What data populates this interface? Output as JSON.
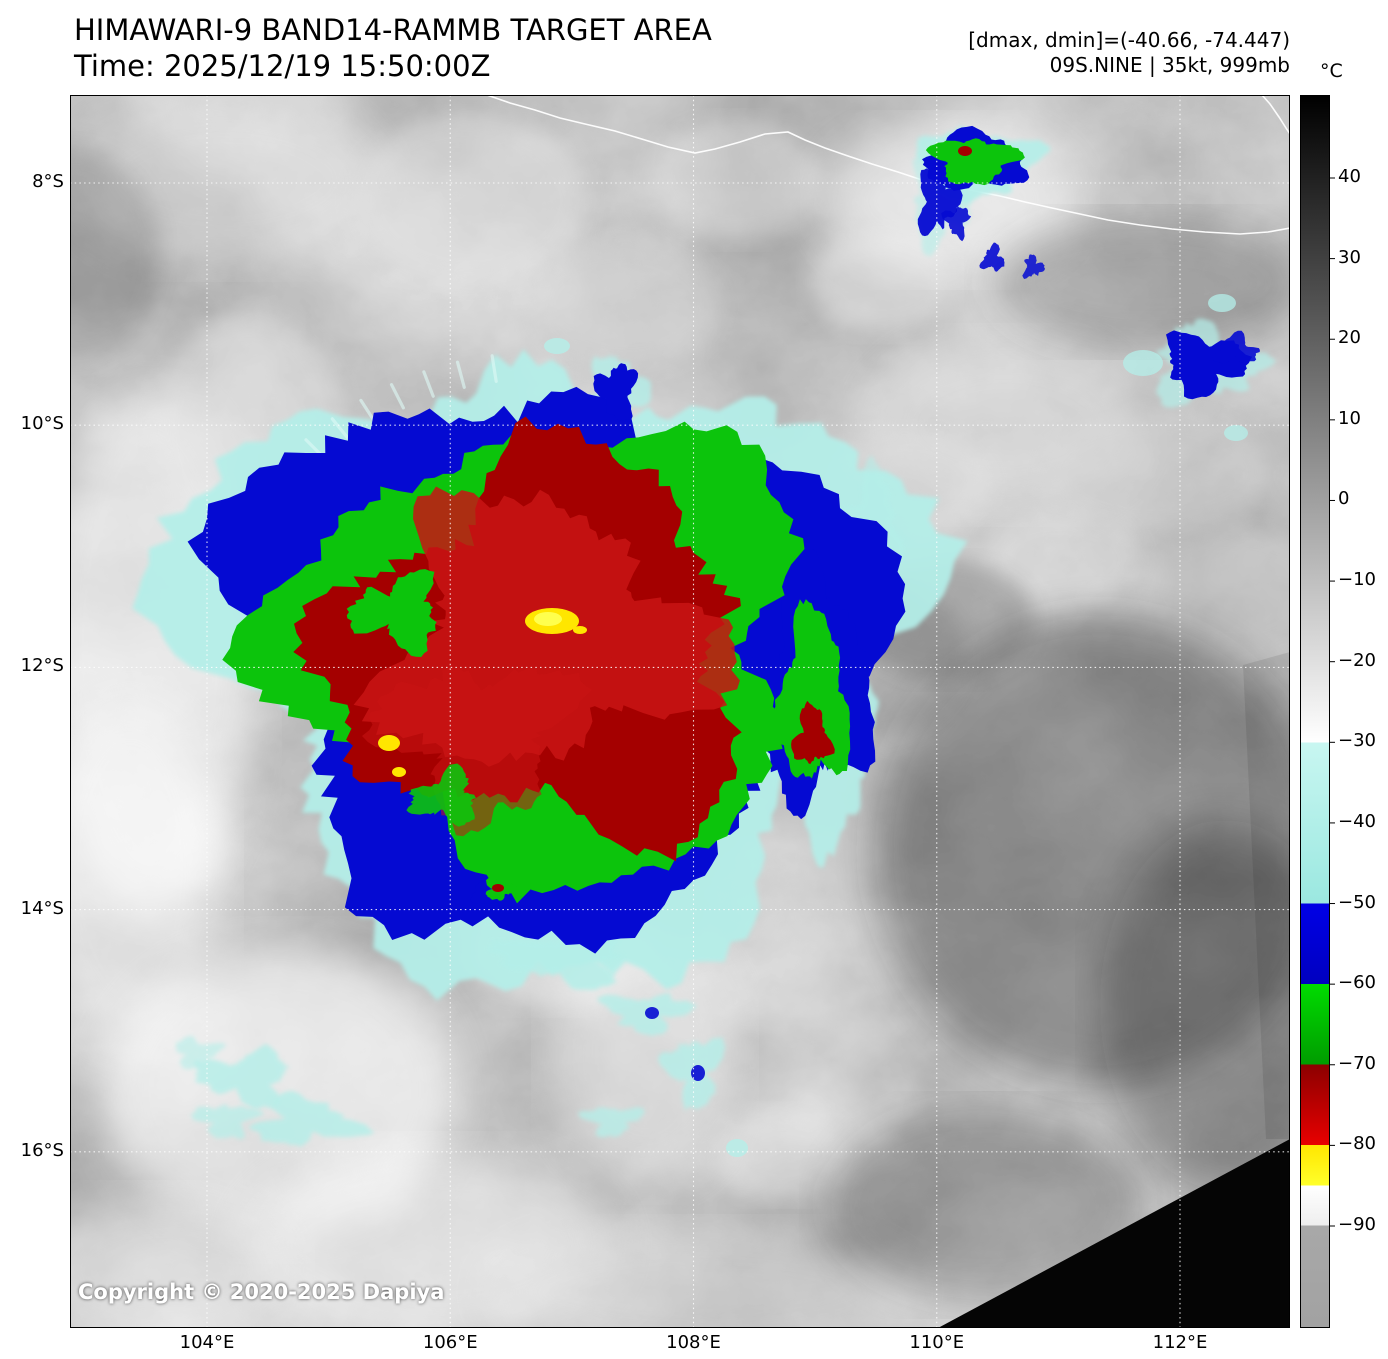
{
  "header": {
    "title": "HIMAWARI-9 BAND14-RAMMB TARGET AREA",
    "time_line": "Time: 2025/12/19 15:50:00Z",
    "dmax_dmin": "[dmax, dmin]=(-40.66, -74.447)",
    "storm_info": "09S.NINE | 35kt, 999mb"
  },
  "map": {
    "copyright": "Copyright © 2020-2025 Dapiya",
    "lat_ticks": [
      {
        "label": "8°S",
        "value": 8
      },
      {
        "label": "10°S",
        "value": 10
      },
      {
        "label": "12°S",
        "value": 12
      },
      {
        "label": "14°S",
        "value": 14
      },
      {
        "label": "16°S",
        "value": 16
      }
    ],
    "lon_ticks": [
      {
        "label": "104°E",
        "value": 104
      },
      {
        "label": "106°E",
        "value": 106
      },
      {
        "label": "108°E",
        "value": 108
      },
      {
        "label": "110°E",
        "value": 110
      },
      {
        "label": "112°E",
        "value": 112
      }
    ]
  },
  "colorbar": {
    "unit": "°C",
    "ticks": [
      {
        "label": "40",
        "value": 40
      },
      {
        "label": "30",
        "value": 30
      },
      {
        "label": "20",
        "value": 20
      },
      {
        "label": "10",
        "value": 10
      },
      {
        "label": "0",
        "value": 0
      },
      {
        "label": "−10",
        "value": -10
      },
      {
        "label": "−20",
        "value": -20
      },
      {
        "label": "−30",
        "value": -30
      },
      {
        "label": "−40",
        "value": -40
      },
      {
        "label": "−50",
        "value": -50
      },
      {
        "label": "−60",
        "value": -60
      },
      {
        "label": "−70",
        "value": -70
      },
      {
        "label": "−80",
        "value": -80
      },
      {
        "label": "−90",
        "value": -90
      }
    ],
    "segments": [
      {
        "from": 50.3,
        "to": -30,
        "colors": [
          "#000000",
          "#ffffff"
        ]
      },
      {
        "from": -30,
        "to": -50,
        "colors": [
          "#c8f6f1",
          "#9be8e0"
        ]
      },
      {
        "from": -50,
        "to": -60,
        "colors": [
          "#0000e6",
          "#0000c0"
        ]
      },
      {
        "from": -60,
        "to": -70,
        "colors": [
          "#00dc00",
          "#009c00"
        ]
      },
      {
        "from": -70,
        "to": -80,
        "colors": [
          "#8c0000",
          "#e80000"
        ]
      },
      {
        "from": -80,
        "to": -85,
        "colors": [
          "#ffe600",
          "#ffff2a"
        ]
      },
      {
        "from": -85,
        "to": -90,
        "colors": [
          "#ffffff",
          "#eeeeee"
        ]
      },
      {
        "from": -90,
        "to": -102.6,
        "colors": [
          "#a8a8a8",
          "#a2a2a2"
        ]
      }
    ]
  },
  "colors": {
    "cyan": "#b4efe9",
    "blue": "#050ad2",
    "green": "#0cc40c",
    "dark_red": "#a40000",
    "red": "#c91414",
    "yellow": "#ffe600"
  }
}
